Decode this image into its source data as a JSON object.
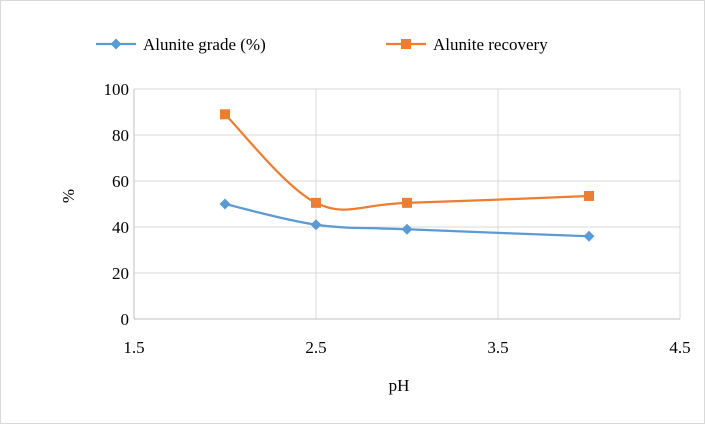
{
  "chart_data": {
    "type": "line",
    "title": "",
    "xlabel": "pH",
    "ylabel": "%",
    "xlim": [
      1.5,
      4.5
    ],
    "ylim": [
      0,
      100
    ],
    "xticks": [
      1.5,
      2.5,
      3.5,
      4.5
    ],
    "xtick_labels": [
      "1.5",
      "2.5",
      "3.5",
      "4.5"
    ],
    "yticks": [
      0,
      20,
      40,
      60,
      80,
      100
    ],
    "ytick_labels": [
      "0",
      "20",
      "40",
      "60",
      "80",
      "100"
    ],
    "grid": true,
    "legend_position": "top",
    "smooth": true,
    "series": [
      {
        "name": "Alunite grade (%)",
        "marker": "diamond",
        "color": "#5B9BD5",
        "x": [
          2,
          2.5,
          3,
          4
        ],
        "y": [
          50,
          41,
          39,
          36
        ]
      },
      {
        "name": "Alunite recovery",
        "marker": "square",
        "color": "#ED7D31",
        "x": [
          2,
          2.5,
          3,
          4
        ],
        "y": [
          89,
          50.5,
          50.5,
          53.5
        ]
      }
    ]
  }
}
